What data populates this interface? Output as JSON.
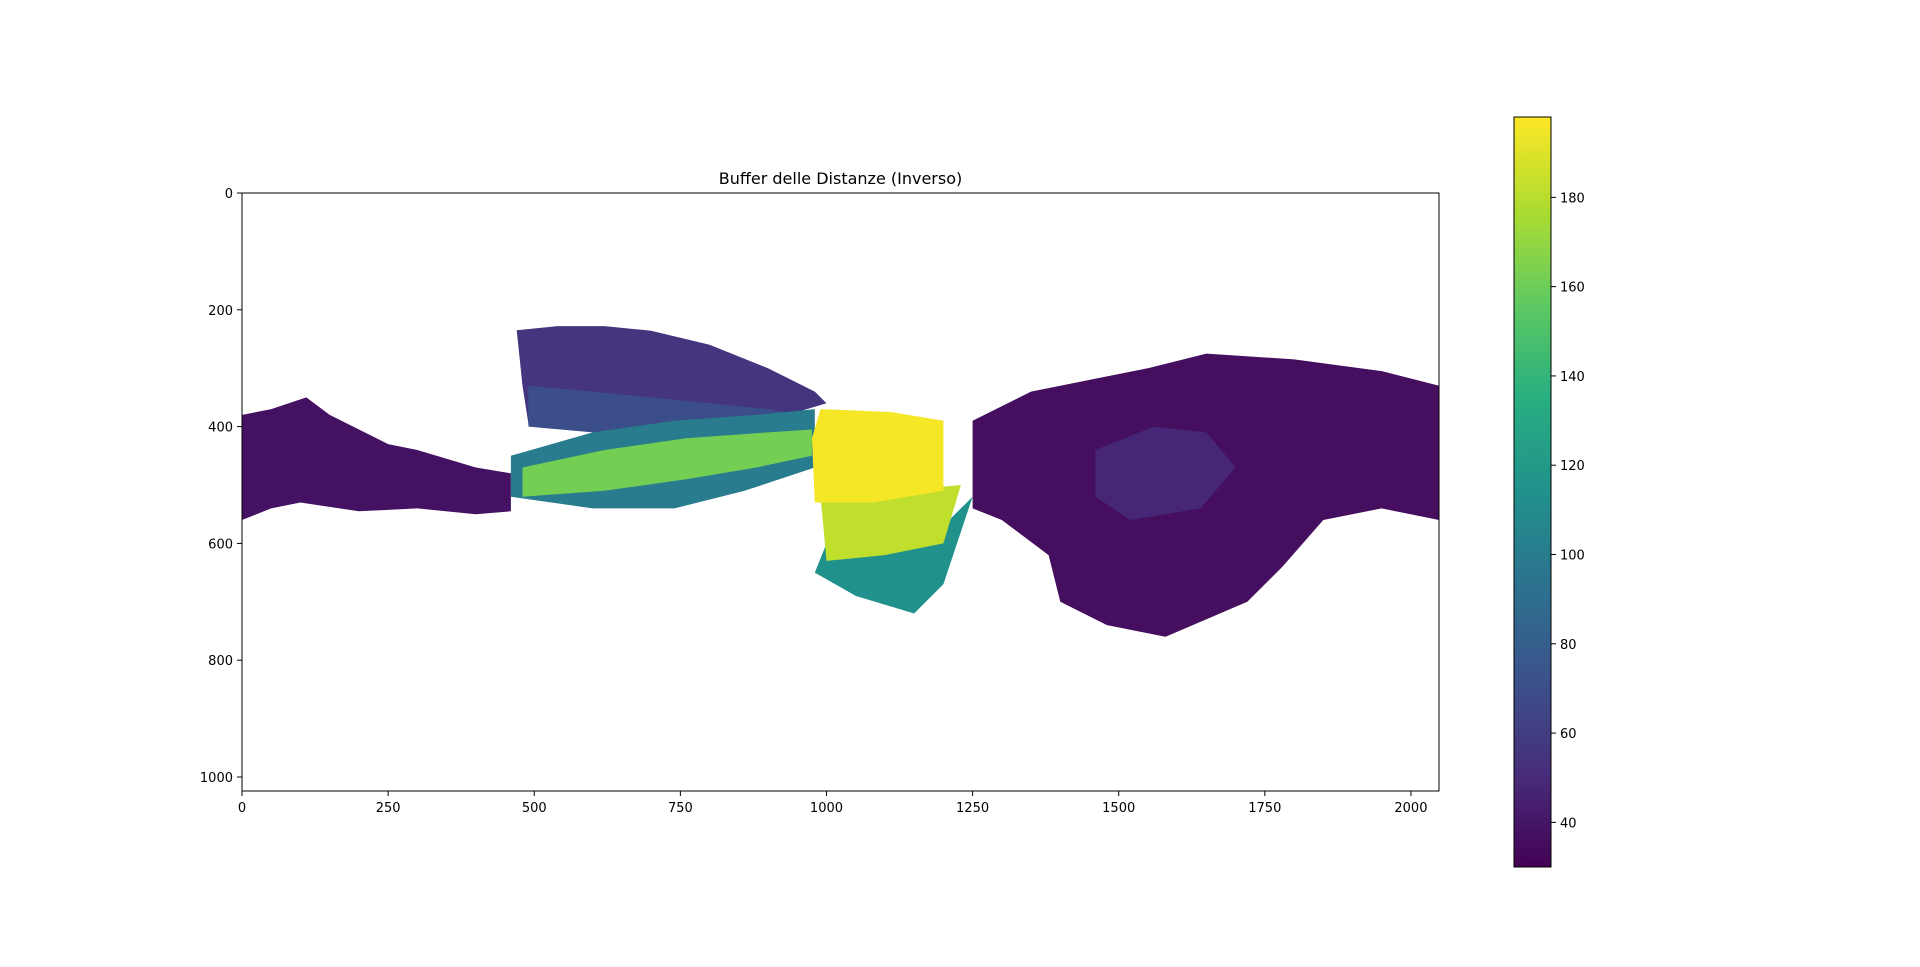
{
  "chart_data": {
    "type": "heatmap",
    "title": "Buffer delle Distanze (Inverso)",
    "xlabel": "",
    "ylabel": "",
    "xlim": [
      0,
      2048
    ],
    "ylim": [
      1024,
      0
    ],
    "x_ticks": [
      0,
      250,
      500,
      750,
      1000,
      1250,
      1500,
      1750,
      2000
    ],
    "y_ticks": [
      0,
      200,
      400,
      600,
      800,
      1000
    ],
    "colormap": "viridis",
    "colorbar": {
      "min": 30,
      "max": 198,
      "ticks": [
        40,
        60,
        80,
        100,
        120,
        140,
        160,
        180
      ]
    },
    "background": "#ffffff",
    "regions": [
      {
        "name": "left-strip",
        "value": 38,
        "polygon": [
          [
            0,
            380
          ],
          [
            50,
            370
          ],
          [
            110,
            350
          ],
          [
            150,
            380
          ],
          [
            250,
            430
          ],
          [
            300,
            440
          ],
          [
            400,
            470
          ],
          [
            460,
            480
          ],
          [
            460,
            545
          ],
          [
            400,
            550
          ],
          [
            300,
            540
          ],
          [
            200,
            545
          ],
          [
            100,
            530
          ],
          [
            50,
            540
          ],
          [
            0,
            560
          ]
        ]
      },
      {
        "name": "upper-fan",
        "value": 55,
        "polygon": [
          [
            470,
            235
          ],
          [
            540,
            228
          ],
          [
            620,
            228
          ],
          [
            700,
            236
          ],
          [
            800,
            260
          ],
          [
            900,
            300
          ],
          [
            980,
            340
          ],
          [
            1000,
            360
          ],
          [
            900,
            390
          ],
          [
            800,
            400
          ],
          [
            700,
            410
          ],
          [
            600,
            400
          ],
          [
            490,
            395
          ],
          [
            480,
            330
          ]
        ]
      },
      {
        "name": "upper-fan-inner",
        "value": 70,
        "polygon": [
          [
            490,
            330
          ],
          [
            600,
            340
          ],
          [
            700,
            350
          ],
          [
            800,
            360
          ],
          [
            900,
            370
          ],
          [
            960,
            380
          ],
          [
            900,
            400
          ],
          [
            700,
            420
          ],
          [
            600,
            410
          ],
          [
            490,
            400
          ]
        ]
      },
      {
        "name": "right-cluster",
        "value": 36,
        "polygon": [
          [
            1250,
            390
          ],
          [
            1350,
            340
          ],
          [
            1450,
            320
          ],
          [
            1550,
            300
          ],
          [
            1650,
            275
          ],
          [
            1800,
            285
          ],
          [
            1950,
            305
          ],
          [
            2048,
            330
          ],
          [
            2048,
            560
          ],
          [
            1950,
            540
          ],
          [
            1850,
            560
          ],
          [
            1780,
            640
          ],
          [
            1720,
            700
          ],
          [
            1580,
            760
          ],
          [
            1480,
            740
          ],
          [
            1400,
            700
          ],
          [
            1380,
            620
          ],
          [
            1300,
            560
          ],
          [
            1250,
            540
          ]
        ]
      },
      {
        "name": "right-cluster-patch",
        "value": 48,
        "polygon": [
          [
            1460,
            440
          ],
          [
            1560,
            400
          ],
          [
            1650,
            410
          ],
          [
            1700,
            470
          ],
          [
            1640,
            540
          ],
          [
            1520,
            560
          ],
          [
            1460,
            520
          ]
        ]
      },
      {
        "name": "diagonal-band",
        "value": 100,
        "polygon": [
          [
            460,
            450
          ],
          [
            600,
            410
          ],
          [
            740,
            390
          ],
          [
            880,
            380
          ],
          [
            980,
            370
          ],
          [
            980,
            470
          ],
          [
            860,
            510
          ],
          [
            740,
            540
          ],
          [
            600,
            540
          ],
          [
            460,
            520
          ]
        ]
      },
      {
        "name": "diagonal-band-bright",
        "value": 162,
        "polygon": [
          [
            480,
            470
          ],
          [
            620,
            440
          ],
          [
            760,
            420
          ],
          [
            900,
            410
          ],
          [
            975,
            405
          ],
          [
            975,
            450
          ],
          [
            880,
            470
          ],
          [
            760,
            490
          ],
          [
            620,
            510
          ],
          [
            480,
            520
          ]
        ]
      },
      {
        "name": "center-teal",
        "value": 115,
        "polygon": [
          [
            1000,
            600
          ],
          [
            1210,
            560
          ],
          [
            1250,
            520
          ],
          [
            1200,
            670
          ],
          [
            1150,
            720
          ],
          [
            1050,
            690
          ],
          [
            980,
            650
          ]
        ]
      },
      {
        "name": "center-yellow-lower",
        "value": 182,
        "polygon": [
          [
            990,
            520
          ],
          [
            1130,
            510
          ],
          [
            1230,
            500
          ],
          [
            1200,
            600
          ],
          [
            1100,
            620
          ],
          [
            1000,
            630
          ]
        ]
      },
      {
        "name": "center-yellow",
        "value": 196,
        "polygon": [
          [
            990,
            370
          ],
          [
            1110,
            375
          ],
          [
            1200,
            390
          ],
          [
            1200,
            510
          ],
          [
            1080,
            530
          ],
          [
            980,
            530
          ],
          [
            975,
            420
          ]
        ]
      }
    ]
  }
}
